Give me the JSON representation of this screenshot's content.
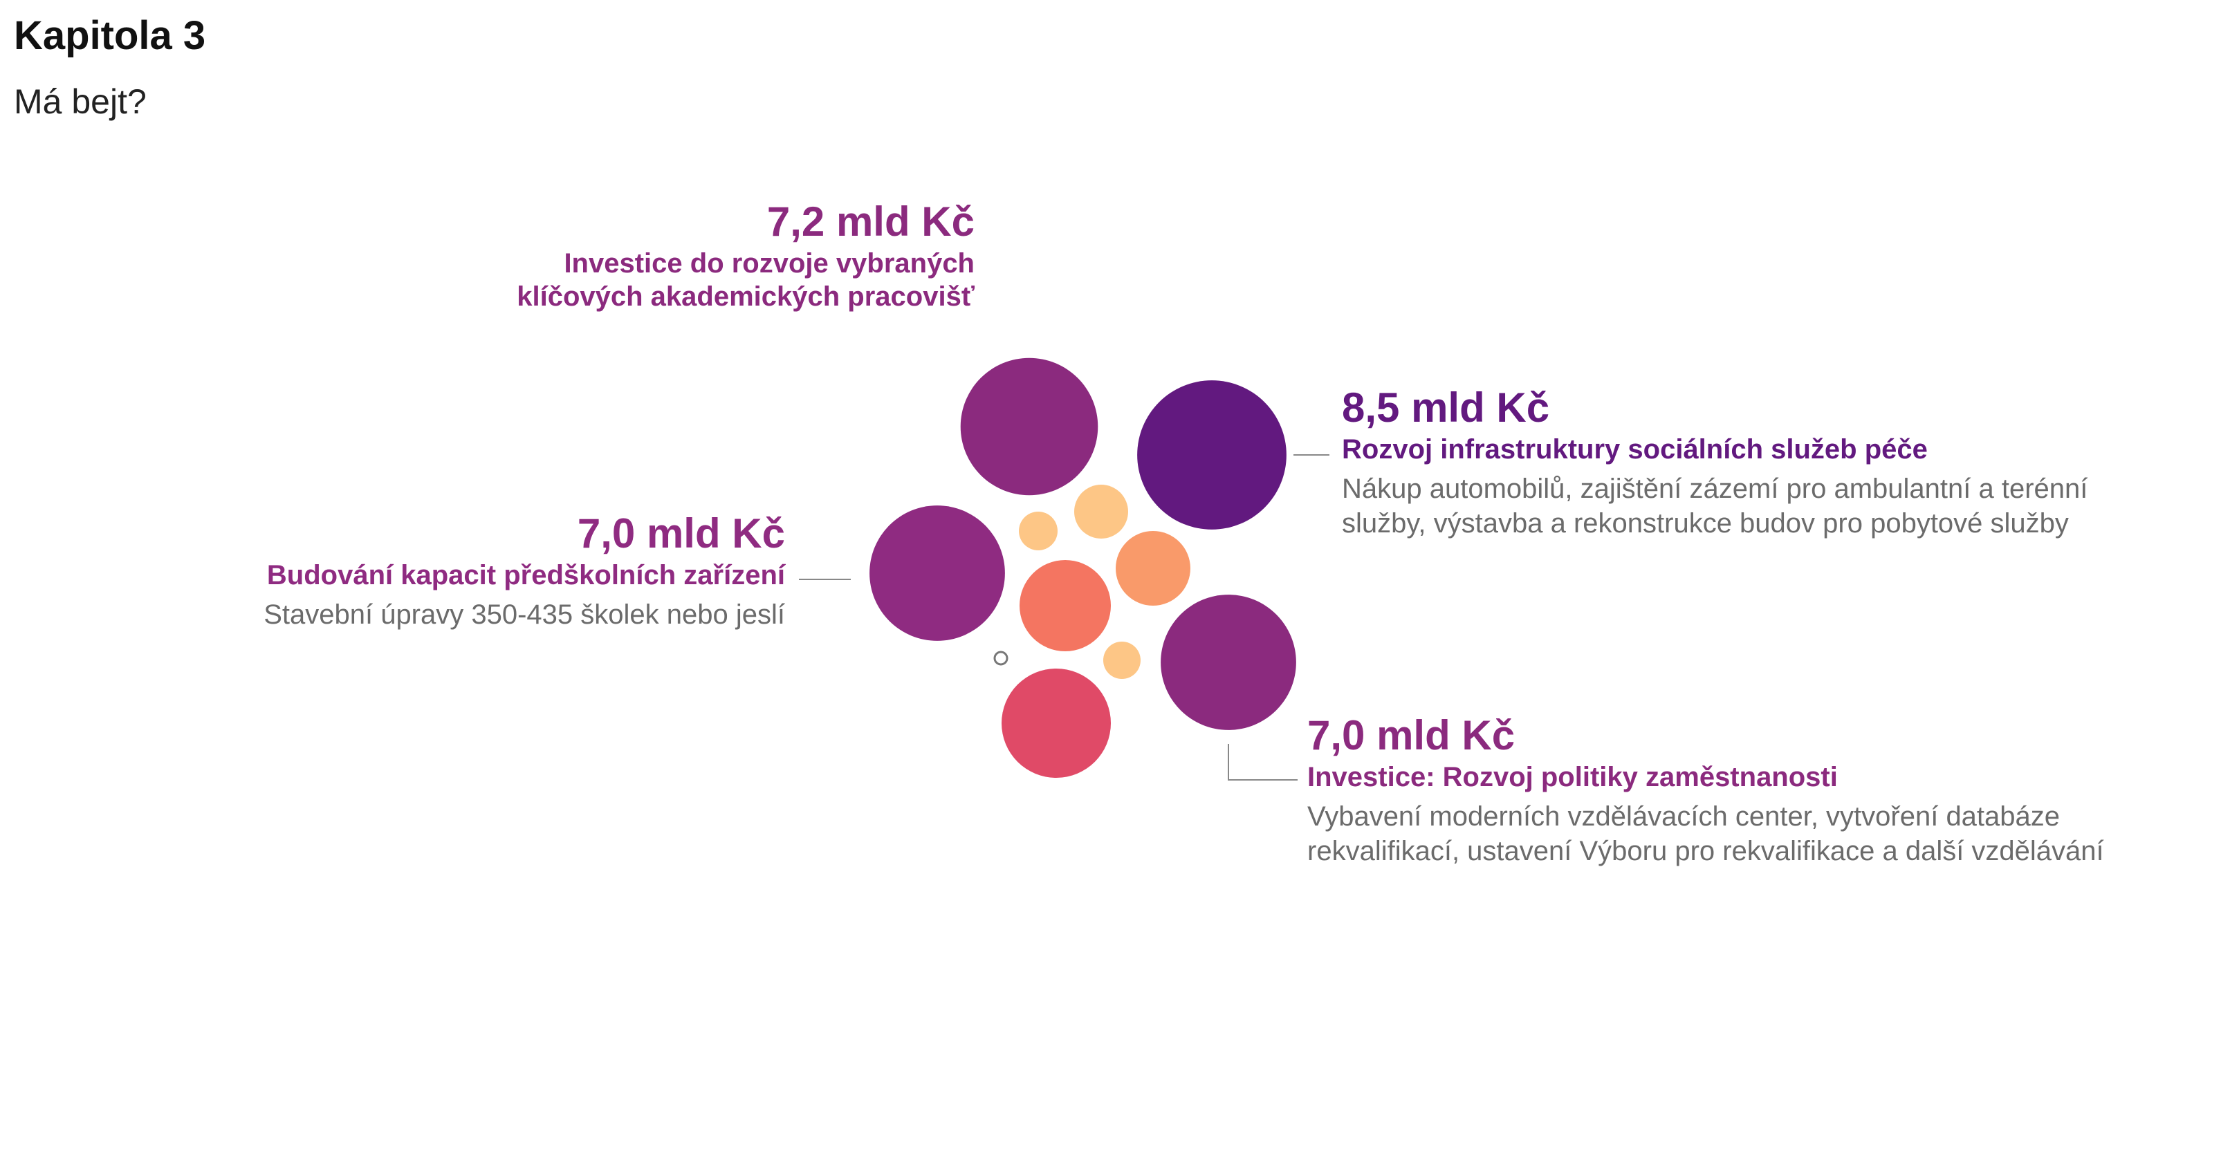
{
  "header": {
    "title": "Kapitola 3",
    "subtitle": "Má bejt?"
  },
  "colors": {
    "deep_purple": "#62197F",
    "purple": "#8B2A7E",
    "magenta": "#8F2B81",
    "red_pink": "#E04A67",
    "coral": "#F47561",
    "orange": "#F99A6A",
    "peach": "#FDC686",
    "line_gray": "#888888",
    "desc_gray": "#6b6b6b"
  },
  "chart_data": {
    "type": "bubble",
    "unit": "mld Kč",
    "annotations": [
      {
        "id": "akademicka",
        "amount": "7,2 mld Kč",
        "name": "Investice do rozvoje vybraných\nklíčových akademických pracovišť",
        "description": "",
        "value": 7.2,
        "color": "#8B2A7E"
      },
      {
        "id": "socialni",
        "amount": "8,5 mld Kč",
        "name": "Rozvoj infrastruktury sociálních služeb péče",
        "description": "Nákup automobilů, zajištění zázemí pro ambulantní a terénní\nslužby, výstavba a rekonstrukce budov pro pobytové služby",
        "value": 8.5,
        "color": "#62197F"
      },
      {
        "id": "predskolni",
        "amount": "7,0 mld Kč",
        "name": "Budování kapacit předškolních zařízení",
        "description": "Stavební úpravy 350-435 školek nebo jeslí",
        "value": 7.0,
        "color": "#8F2B81"
      },
      {
        "id": "zamestnanost",
        "amount": "7,0 mld Kč",
        "name": "Investice: Rozvoj politiky zaměstnanosti",
        "description": "Vybavení moderních vzdělávacích center, vytvoření databáze\nrekvalifikací, ustavení Výboru pro rekvalifikace a další vzdělávání",
        "value": 7.0,
        "color": "#8B2A7E"
      }
    ],
    "unlabeled_bubbles": [
      {
        "color": "#E04A67"
      },
      {
        "color": "#F47561"
      },
      {
        "color": "#F99A6A"
      },
      {
        "color": "#FDC686"
      },
      {
        "color": "#FDC686"
      },
      {
        "color": "#FDC686"
      },
      {
        "color": "#FFFFFF"
      }
    ]
  }
}
